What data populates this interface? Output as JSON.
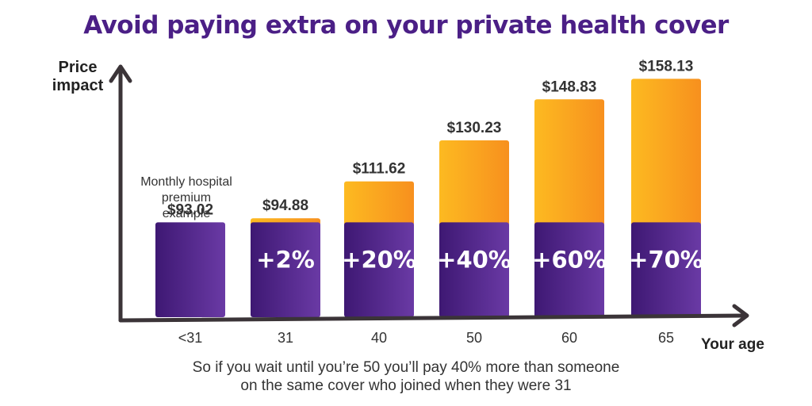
{
  "title": "Avoid paying extra on your private health cover",
  "footnote": "So if you wait until you’re 50 you’ll pay 40% more than someone\non the same cover who joined when they were 31",
  "annotation": "Monthly hospital\npremium\nexample",
  "colors": {
    "title": "#4b1f86",
    "base": "#3e1873",
    "base_light": "#6a3aa5",
    "extra_light": "#fdba21",
    "extra_dark": "#f7901e",
    "axis": "#3b3438"
  },
  "chart_data": {
    "type": "bar",
    "title": "Avoid paying extra on your private health cover",
    "xlabel": "Your age",
    "ylabel": "Price\nimpact",
    "categories": [
      "<31",
      "31",
      "40",
      "50",
      "60",
      "65"
    ],
    "values": [
      93.02,
      94.88,
      111.62,
      130.23,
      148.83,
      158.13
    ],
    "base_value": 93.02,
    "value_labels": [
      "$93.02",
      "$94.88",
      "$111.62",
      "$130.23",
      "$148.83",
      "$158.13"
    ],
    "increase_labels": [
      "",
      "+2%",
      "+20%",
      "+40%",
      "+60%",
      "+70%"
    ],
    "series": [
      {
        "values": [
          93.02,
          93.02,
          93.02,
          93.02,
          93.02,
          93.02
        ]
      },
      {
        "values": [
          0,
          1.86,
          18.6,
          37.21,
          55.81,
          65.11
        ]
      }
    ],
    "ylim": [
      0,
      160
    ],
    "grid": false,
    "legend": "none"
  }
}
